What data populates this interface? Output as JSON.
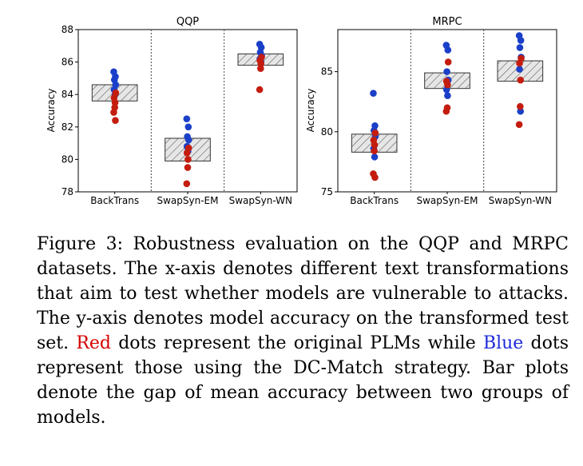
{
  "chart_data": [
    {
      "type": "scatter",
      "title": "QQP",
      "ylabel": "Accuracy",
      "categories": [
        "BackTrans",
        "SwapSyn-EM",
        "SwapSyn-WN"
      ],
      "ylim": [
        78,
        88
      ],
      "yticks": [
        78,
        80,
        82,
        84,
        86,
        88
      ],
      "gap_bars": [
        {
          "category": "BackTrans",
          "low": 83.6,
          "high": 84.6
        },
        {
          "category": "SwapSyn-EM",
          "low": 79.9,
          "high": 81.3
        },
        {
          "category": "SwapSyn-WN",
          "low": 85.8,
          "high": 86.5
        }
      ],
      "series": [
        {
          "color": "#1a3fc8",
          "points": {
            "BackTrans": [
              85.4,
              85.1,
              84.9,
              84.6,
              84.3,
              84.0
            ],
            "SwapSyn-EM": [
              82.5,
              82.0,
              81.4,
              81.2,
              80.8,
              80.5
            ],
            "SwapSyn-WN": [
              87.1,
              86.9,
              86.6,
              86.4,
              86.2,
              86.0
            ]
          }
        },
        {
          "color": "#c41c0e",
          "points": {
            "BackTrans": [
              84.1,
              83.8,
              83.5,
              83.2,
              82.9,
              82.4
            ],
            "SwapSyn-EM": [
              80.7,
              80.4,
              80.0,
              79.5,
              78.5
            ],
            "SwapSyn-WN": [
              86.3,
              86.1,
              85.9,
              85.6,
              84.3
            ]
          }
        }
      ]
    },
    {
      "type": "scatter",
      "title": "MRPC",
      "ylabel": "Accuracy",
      "categories": [
        "BackTrans",
        "SwapSyn-EM",
        "SwapSyn-WN"
      ],
      "ylim": [
        75,
        88.5
      ],
      "yticks": [
        75,
        80,
        85
      ],
      "gap_bars": [
        {
          "category": "BackTrans",
          "low": 78.3,
          "high": 79.8
        },
        {
          "category": "SwapSyn-EM",
          "low": 83.6,
          "high": 84.9
        },
        {
          "category": "SwapSyn-WN",
          "low": 84.2,
          "high": 85.9
        }
      ],
      "series": [
        {
          "color": "#1a3fc8",
          "points": {
            "BackTrans": [
              83.2,
              80.5,
              80.1,
              79.6,
              78.6,
              77.9
            ],
            "SwapSyn-EM": [
              87.2,
              86.8,
              85.0,
              84.3,
              83.5,
              83.0
            ],
            "SwapSyn-WN": [
              88.0,
              87.6,
              87.0,
              86.2,
              85.2,
              81.7
            ]
          }
        },
        {
          "color": "#c41c0e",
          "points": {
            "BackTrans": [
              79.9,
              79.3,
              78.9,
              78.4,
              76.5,
              76.2
            ],
            "SwapSyn-EM": [
              85.8,
              84.2,
              83.9,
              82.0,
              81.7
            ],
            "SwapSyn-WN": [
              86.1,
              85.7,
              84.3,
              82.1,
              80.6
            ]
          }
        }
      ]
    }
  ],
  "caption": {
    "before_red": "Figure 3: Robustness evaluation on the QQP and MRPC datasets. The x-axis denotes different text transformations that aim to test whether models are vulnerable to attacks. The y-axis denotes model accuracy on the transformed test set. ",
    "red_word": "Red",
    "between": " dots represent the original PLMs while ",
    "blue_word": "Blue",
    "after_blue": " dots represent those using the DC-Match strategy. Bar plots denote the gap of mean accuracy between two groups of models."
  }
}
